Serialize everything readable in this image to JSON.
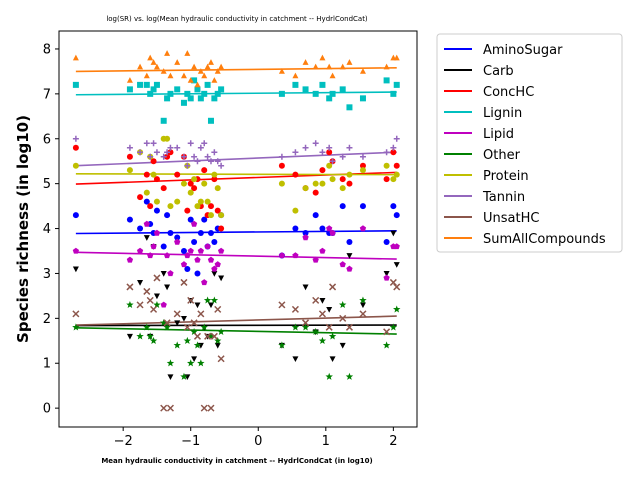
{
  "chart_data": {
    "type": "scatter",
    "title": "log(SR) vs. log(Mean hydraulic conductivity in catchment -- HydrlCondCat)",
    "xlabel": "Mean hydraulic conductivity in catchment -- HydrlCondCat (in log10)",
    "ylabel": "Species richness (in log10)",
    "xlim": [
      -2.95,
      2.35
    ],
    "ylim": [
      -0.42,
      8.4
    ],
    "xticks": [
      -2,
      -1,
      0,
      1,
      2
    ],
    "yticks": [
      0,
      1,
      2,
      3,
      4,
      5,
      6,
      7,
      8
    ],
    "xtick_labels": [
      "−2",
      "−1",
      "0",
      "1",
      "2"
    ],
    "ytick_labels": [
      "0",
      "1",
      "2",
      "3",
      "4",
      "5",
      "6",
      "7",
      "8"
    ],
    "legend_position": "outside-right",
    "x": [
      -2.7,
      -1.9,
      -1.75,
      -1.65,
      -1.6,
      -1.55,
      -1.5,
      -1.4,
      -1.35,
      -1.3,
      -1.2,
      -1.1,
      -1.05,
      -1.0,
      -0.95,
      -0.9,
      -0.85,
      -0.8,
      -0.75,
      -0.7,
      -0.65,
      -0.6,
      -0.55,
      0.35,
      0.55,
      0.7,
      0.85,
      0.95,
      1.05,
      1.1,
      1.25,
      1.35,
      1.55,
      1.9,
      2.0,
      2.05
    ],
    "series": [
      {
        "name": "AminoSugar",
        "color": "#0000ff",
        "marker": "circle",
        "y": [
          4.3,
          4.2,
          4.0,
          4.6,
          4.1,
          3.9,
          4.4,
          3.6,
          4.3,
          3.9,
          3.8,
          3.5,
          3.1,
          4.2,
          3.7,
          3.0,
          3.9,
          4.2,
          3.6,
          3.9,
          3.7,
          4.0,
          4.3,
          3.4,
          4.0,
          3.9,
          4.3,
          4.0,
          3.9,
          3.9,
          4.5,
          3.7,
          4.5,
          3.7,
          4.5,
          4.3
        ],
        "trend": [
          3.89,
          3.95
        ]
      },
      {
        "name": "Carb",
        "color": "#000000",
        "marker": "triangle-down",
        "y": [
          3.1,
          1.6,
          2.8,
          3.8,
          1.6,
          3.6,
          2.5,
          3.0,
          2.7,
          0.7,
          1.9,
          2.0,
          0.7,
          2.4,
          1.1,
          2.3,
          1.4,
          1.8,
          1.6,
          2.3,
          3.0,
          1.4,
          2.9,
          1.4,
          1.1,
          2.7,
          1.7,
          2.4,
          2.2,
          1.1,
          1.4,
          3.4,
          2.3,
          3.0,
          3.9,
          3.2
        ],
        "trend": [
          1.84,
          1.85
        ]
      },
      {
        "name": "ConcHC",
        "color": "#ff0000",
        "marker": "circle",
        "y": [
          5.8,
          5.6,
          4.7,
          5.2,
          4.5,
          5.5,
          5.1,
          4.9,
          5.6,
          5.7,
          5.2,
          5.6,
          4.4,
          5.0,
          4.9,
          5.1,
          4.5,
          5.3,
          4.3,
          4.5,
          5.1,
          4.4,
          4.0,
          5.4,
          5.2,
          4.9,
          4.8,
          5.3,
          5.7,
          5.5,
          5.1,
          5.0,
          5.4,
          5.1,
          5.7,
          5.4
        ],
        "trend": [
          4.99,
          5.25
        ]
      },
      {
        "name": "Lignin",
        "color": "#00bfbf",
        "marker": "square",
        "y": [
          7.2,
          7.1,
          7.2,
          7.2,
          7.0,
          7.1,
          7.2,
          6.4,
          6.9,
          7.0,
          7.1,
          6.8,
          7.0,
          6.9,
          7.3,
          7.1,
          6.9,
          7.0,
          7.2,
          6.4,
          6.9,
          7.0,
          7.1,
          7.0,
          7.2,
          7.1,
          7.0,
          7.2,
          6.9,
          7.0,
          7.1,
          6.7,
          6.9,
          7.3,
          7.0,
          7.2
        ],
        "trend": [
          6.98,
          7.04
        ]
      },
      {
        "name": "Lipid",
        "color": "#bf00bf",
        "marker": "pentagon",
        "y": [
          3.5,
          3.3,
          3.5,
          4.1,
          3.4,
          3.6,
          3.9,
          2.3,
          3.4,
          3.0,
          3.7,
          3.2,
          3.4,
          3.5,
          4.1,
          3.3,
          3.5,
          2.8,
          3.6,
          3.3,
          3.1,
          3.2,
          3.5,
          3.4,
          3.4,
          3.8,
          3.3,
          3.5,
          4.0,
          3.9,
          3.2,
          3.1,
          4.0,
          2.9,
          3.6,
          3.6
        ],
        "trend": [
          3.47,
          3.32
        ]
      },
      {
        "name": "Other",
        "color": "#008000",
        "marker": "star",
        "y": [
          1.8,
          2.3,
          1.6,
          1.8,
          1.6,
          1.5,
          2.3,
          1.9,
          1.8,
          1.0,
          1.4,
          0.7,
          1.5,
          1.0,
          1.7,
          1.4,
          1.0,
          1.8,
          2.4,
          1.6,
          2.4,
          1.5,
          1.7,
          1.4,
          1.8,
          1.8,
          1.7,
          1.5,
          0.7,
          1.6,
          2.3,
          0.7,
          2.4,
          1.4,
          1.8,
          2.2
        ],
        "trend": [
          1.79,
          1.65
        ]
      },
      {
        "name": "Protein",
        "color": "#bfbf00",
        "marker": "circle",
        "y": [
          5.4,
          5.3,
          5.7,
          4.8,
          5.6,
          5.2,
          4.6,
          6.0,
          6.0,
          4.5,
          4.6,
          5.0,
          5.4,
          4.8,
          5.1,
          4.5,
          4.6,
          5.0,
          4.6,
          4.3,
          5.2,
          4.9,
          4.3,
          5.0,
          4.4,
          4.9,
          5.0,
          5.0,
          5.4,
          5.1,
          4.9,
          5.2,
          5.3,
          5.4,
          5.1,
          5.2
        ],
        "trend": [
          5.22,
          5.2
        ]
      },
      {
        "name": "Tannin",
        "color": "#9467bd",
        "marker": "plus",
        "y": [
          6.0,
          5.8,
          5.7,
          5.9,
          5.6,
          5.9,
          5.7,
          5.6,
          5.7,
          5.8,
          5.8,
          5.6,
          5.4,
          5.9,
          5.6,
          5.5,
          5.8,
          5.9,
          5.6,
          5.5,
          5.7,
          5.5,
          5.4,
          5.6,
          5.7,
          5.8,
          5.9,
          5.7,
          5.8,
          5.5,
          5.6,
          5.8,
          5.6,
          5.7,
          5.8,
          6.0
        ],
        "trend": [
          5.4,
          5.7
        ]
      },
      {
        "name": "UnsatHC",
        "color": "#8c564b",
        "marker": "x",
        "y": [
          2.1,
          2.7,
          2.3,
          2.6,
          2.4,
          2.2,
          2.9,
          0.0,
          1.9,
          0.0,
          2.1,
          2.8,
          1.8,
          2.4,
          1.9,
          1.6,
          2.1,
          0.0,
          1.6,
          0.0,
          1.6,
          2.2,
          1.1,
          2.3,
          2.2,
          1.9,
          2.4,
          2.1,
          1.8,
          2.7,
          2.0,
          1.8,
          2.1,
          1.7,
          2.8,
          2.7
        ],
        "trend": [
          1.85,
          2.05
        ]
      },
      {
        "name": "SumAllCompounds",
        "color": "#ff7f0e",
        "marker": "triangle-up",
        "y": [
          7.8,
          7.3,
          7.6,
          7.4,
          7.8,
          7.7,
          7.6,
          7.5,
          7.9,
          7.4,
          7.7,
          7.4,
          7.9,
          7.3,
          7.6,
          7.2,
          7.5,
          7.4,
          7.6,
          7.7,
          7.3,
          7.5,
          7.6,
          7.5,
          7.4,
          7.7,
          7.6,
          7.8,
          7.6,
          7.4,
          7.6,
          7.7,
          7.5,
          7.6,
          7.8,
          7.8
        ],
        "trend": [
          7.5,
          7.58
        ]
      }
    ]
  }
}
